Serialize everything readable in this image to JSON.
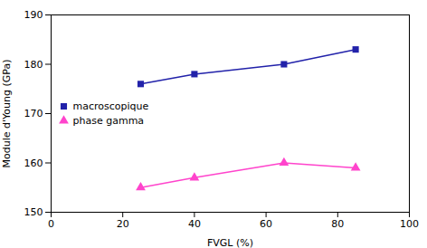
{
  "chart_data": {
    "type": "line",
    "xlabel": "FVGL (%)",
    "ylabel": "Module d'Young (GPa)",
    "x": [
      25,
      40,
      65,
      85
    ],
    "series": [
      {
        "name": "macroscopique",
        "color": "#2222AA",
        "marker": "square",
        "values": [
          176,
          178,
          180,
          183
        ]
      },
      {
        "name": "phase gamma",
        "color": "#FF44CC",
        "marker": "triangle",
        "values": [
          155,
          157,
          160,
          159
        ]
      }
    ],
    "xlim": [
      0,
      100
    ],
    "ylim": [
      150,
      190
    ],
    "xticks": [
      0,
      20,
      40,
      60,
      80,
      100
    ],
    "yticks": [
      150,
      160,
      170,
      180,
      190
    ],
    "grid": false,
    "legend": "left"
  }
}
